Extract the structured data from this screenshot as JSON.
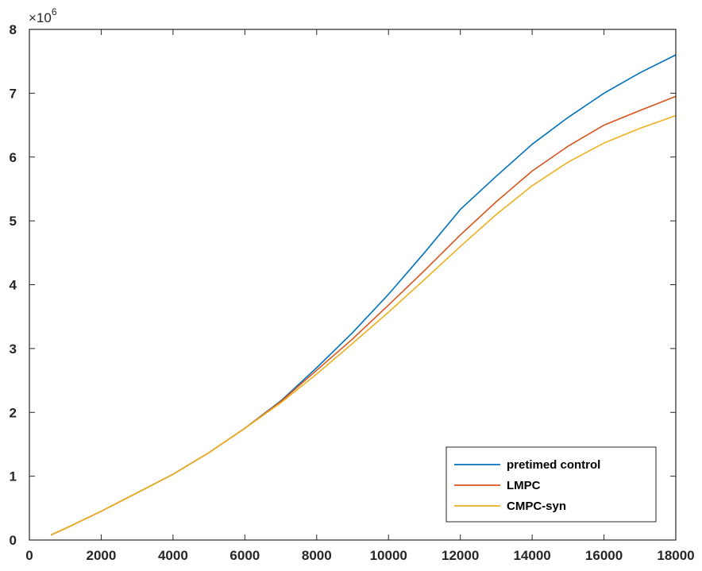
{
  "chart_data": {
    "type": "line",
    "title": "",
    "xlabel": "",
    "ylabel": "",
    "xlim": [
      0,
      18000
    ],
    "ylim": [
      0,
      8
    ],
    "y_exponent_label": "×10",
    "y_exponent_power": "6",
    "x_ticks": [
      0,
      2000,
      4000,
      6000,
      8000,
      10000,
      12000,
      14000,
      16000,
      18000
    ],
    "y_ticks": [
      0,
      1,
      2,
      3,
      4,
      5,
      6,
      7,
      8
    ],
    "grid": false,
    "legend_position": "bottom-right",
    "x": [
      600,
      1000,
      2000,
      3000,
      4000,
      5000,
      6000,
      7000,
      8000,
      9000,
      10000,
      11000,
      12000,
      13000,
      14000,
      15000,
      16000,
      17000,
      18000
    ],
    "series": [
      {
        "name": "pretimed control",
        "color": "#0072BD",
        "values": [
          0.08,
          0.18,
          0.45,
          0.74,
          1.03,
          1.37,
          1.75,
          2.18,
          2.7,
          3.25,
          3.85,
          4.5,
          5.18,
          5.7,
          6.2,
          6.62,
          7.0,
          7.32,
          7.6
        ]
      },
      {
        "name": "LMPC",
        "color": "#D95319",
        "values": [
          0.08,
          0.18,
          0.45,
          0.74,
          1.03,
          1.37,
          1.75,
          2.17,
          2.66,
          3.15,
          3.68,
          4.22,
          4.78,
          5.3,
          5.78,
          6.17,
          6.5,
          6.73,
          6.95
        ]
      },
      {
        "name": "CMPC-syn",
        "color": "#EDB120",
        "values": [
          0.08,
          0.18,
          0.45,
          0.74,
          1.03,
          1.37,
          1.75,
          2.15,
          2.6,
          3.08,
          3.57,
          4.08,
          4.6,
          5.1,
          5.55,
          5.92,
          6.22,
          6.45,
          6.65
        ]
      }
    ]
  }
}
